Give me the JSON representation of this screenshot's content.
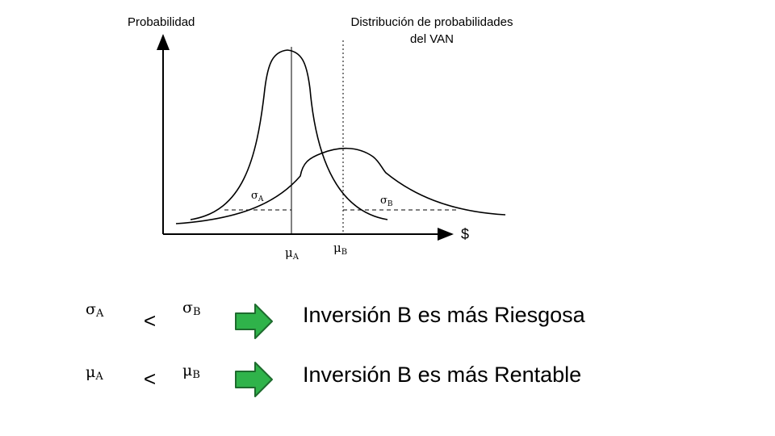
{
  "diagram": {
    "y_axis_label": "Probabilidad",
    "x_axis_label": "$",
    "title_line1": "Distribución de probabilidades",
    "title_line2": "del VAN",
    "sigma_a": {
      "base": "σ",
      "sub": "A"
    },
    "sigma_b": {
      "base": "σ",
      "sub": "B"
    },
    "mu_a": {
      "base": "μ",
      "sub": "A"
    },
    "mu_b": {
      "base": "μ",
      "sub": "B"
    }
  },
  "conclusions": [
    {
      "left": {
        "base": "σ",
        "sub": "A"
      },
      "operator": "<",
      "right": {
        "base": "σ",
        "sub": "B"
      },
      "text": "Inversión B es más Riesgosa"
    },
    {
      "left": {
        "base": "μ",
        "sub": "A"
      },
      "operator": "<",
      "right": {
        "base": "μ",
        "sub": "B"
      },
      "text": "Inversión B es más Rentable"
    }
  ],
  "colors": {
    "arrow_fill": "#2fb34a",
    "arrow_stroke": "#1e6b2e",
    "line": "#000000"
  }
}
